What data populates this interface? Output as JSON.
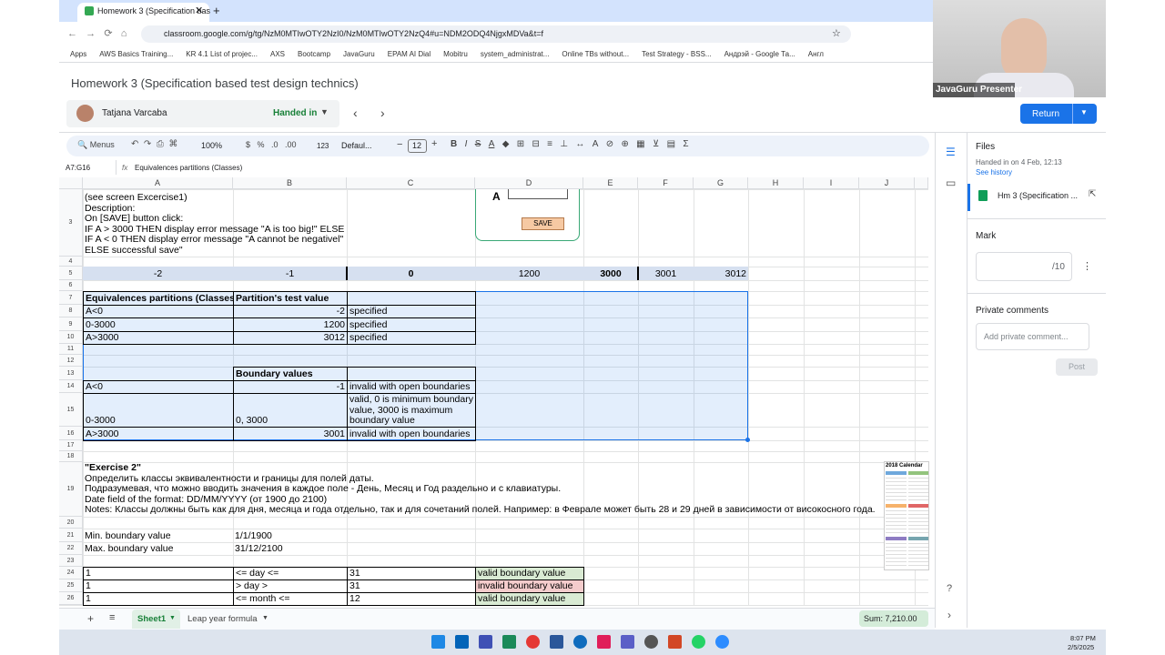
{
  "browser": {
    "tab_title": "Homework 3 (Specification bas",
    "url": "classroom.google.com/g/tg/NzM0MTIwOTY2NzI0/NzM0MTIwOTY2NzQ4#u=NDM2ODQ4NjgxMDVa&t=f",
    "bookmarks": [
      "Apps",
      "AWS Basics Training...",
      "KR 4.1 List of projec...",
      "AXS",
      "Bootcamp",
      "JavaGuru",
      "EPAM AI Dial",
      "Mobitru",
      "system_administrat...",
      "Online TBs without...",
      "Test Strategy - BSS...",
      "Андрэй - Google Та...",
      "Англ"
    ]
  },
  "header": {
    "title": "Homework 3 (Specification based test design technics)",
    "student": "Tatjana Varcaba",
    "status": "Handed in",
    "return_button": "Return"
  },
  "video": {
    "label": "JavaGuru Presenter"
  },
  "toolbar": {
    "menus": "Menus",
    "zoom": "100%",
    "number_format": "123",
    "font": "Defaul...",
    "font_size": "12"
  },
  "formula_bar": {
    "cell_ref": "A7:G16",
    "content": "Equivalences partitions (Classes)"
  },
  "sheet": {
    "columns": [
      "A",
      "B",
      "C",
      "D",
      "E",
      "F",
      "G",
      "H",
      "I",
      "J"
    ],
    "rows": [
      "3",
      "4",
      "5",
      "6",
      "7",
      "8",
      "9",
      "10",
      "11",
      "12",
      "13",
      "14",
      "15",
      "16",
      "17",
      "18",
      "19",
      "20",
      "21",
      "22",
      "23",
      "24",
      "25",
      "26"
    ],
    "embedded_form": {
      "label": "A",
      "button": "SAVE"
    },
    "embedded_calendar": {
      "title": "2018 Calendar"
    },
    "cells": [
      {
        "row": "3",
        "col": "A",
        "text": "(see screen Excercise1)\nDescription:\nOn [SAVE] button click:\nIF A > 3000 THEN display error message \"A is too big!\" ELSE\nIF A < 0 THEN display error message \"A cannot be negativel\"\nELSE successful save\""
      },
      {
        "row": "5",
        "col": "A",
        "text": "-2",
        "align": "center",
        "fill": "#d6e0f0"
      },
      {
        "row": "5",
        "col": "B",
        "text": "-1",
        "align": "center",
        "fill": "#d6e0f0"
      },
      {
        "row": "5",
        "col": "C",
        "text": "0",
        "align": "center",
        "bold": true,
        "fill": "#d6e0f0"
      },
      {
        "row": "5",
        "col": "D",
        "text": "1200",
        "align": "center",
        "fill": "#d6e0f0"
      },
      {
        "row": "5",
        "col": "E",
        "text": "3000",
        "align": "center",
        "bold": true,
        "fill": "#d6e0f0"
      },
      {
        "row": "5",
        "col": "F",
        "text": "3001",
        "align": "center",
        "fill": "#d6e0f0"
      },
      {
        "row": "5",
        "col": "G",
        "text": "3012",
        "align": "right",
        "fill": "#d6e0f0"
      },
      {
        "row": "7",
        "col": "A",
        "text": "Equivalences partitions (Classes)",
        "bold": true,
        "border": true
      },
      {
        "row": "7",
        "col": "B",
        "text": "Partition's test value",
        "bold": true,
        "border": true
      },
      {
        "row": "7",
        "col": "C",
        "text": "",
        "border": true
      },
      {
        "row": "8",
        "col": "A",
        "text": "A<0",
        "border": true
      },
      {
        "row": "8",
        "col": "B",
        "text": "-2",
        "align": "right",
        "border": true
      },
      {
        "row": "8",
        "col": "C",
        "text": "specified",
        "border": true
      },
      {
        "row": "9",
        "col": "A",
        "text": "0-3000",
        "border": true
      },
      {
        "row": "9",
        "col": "B",
        "text": "1200",
        "align": "right",
        "border": true
      },
      {
        "row": "9",
        "col": "C",
        "text": "specified",
        "border": true
      },
      {
        "row": "10",
        "col": "A",
        "text": "A>3000",
        "border": true
      },
      {
        "row": "10",
        "col": "B",
        "text": "3012",
        "align": "right",
        "border": true
      },
      {
        "row": "10",
        "col": "C",
        "text": "specified",
        "border": true
      },
      {
        "row": "13",
        "col": "B",
        "text": "Boundary values",
        "bold": true,
        "border": true
      },
      {
        "row": "13",
        "col": "C",
        "text": "",
        "border": true
      },
      {
        "row": "14",
        "col": "A",
        "text": "A<0",
        "border": true
      },
      {
        "row": "14",
        "col": "B",
        "text": "-1",
        "align": "right",
        "border": true
      },
      {
        "row": "14",
        "col": "C",
        "text": "invalid with open boundaries",
        "border": true
      },
      {
        "row": "15",
        "col": "A",
        "text": "0-3000",
        "border": true
      },
      {
        "row": "15",
        "col": "B",
        "text": "0, 3000",
        "border": true
      },
      {
        "row": "15",
        "col": "C",
        "text": "valid, 0 is minimum boundary value, 3000 is maximum boundary value",
        "border": true,
        "wrap": true
      },
      {
        "row": "16",
        "col": "A",
        "text": "A>3000",
        "border": true
      },
      {
        "row": "16",
        "col": "B",
        "text": "3001",
        "align": "right",
        "border": true
      },
      {
        "row": "16",
        "col": "C",
        "text": "invalid with open boundaries",
        "border": true
      },
      {
        "row": "19",
        "col": "A",
        "heading": "\"Exercise 2\"",
        "text": "Определить классы эквивалентности и границы для полей даты.\nПодразумевая, что можно вводить значения в каждое поле - День, Месяц и Год раздельно и с клавиатуры.\nDate field of the format: DD/MM/YYYY (от 1900 до 2100)\nNotes: Классы должны быть как для дня, месяца и года отдельно, так и для сочетаний полей. Например: в Феврале может быть 28 и 29 дней в зависимости от високосного года."
      },
      {
        "row": "21",
        "col": "A",
        "text": "Min. boundary value"
      },
      {
        "row": "21",
        "col": "B",
        "text": "1/1/1900"
      },
      {
        "row": "22",
        "col": "A",
        "text": "Max. boundary value"
      },
      {
        "row": "22",
        "col": "B",
        "text": "31/12/2100"
      },
      {
        "row": "24",
        "col": "A",
        "text": "1",
        "border": true
      },
      {
        "row": "24",
        "col": "B",
        "text": "<= day <=",
        "border": true
      },
      {
        "row": "24",
        "col": "C",
        "text": "31",
        "border": true
      },
      {
        "row": "24",
        "col": "D",
        "text": "valid boundary value",
        "border": true,
        "fill": "#d9ead3"
      },
      {
        "row": "25",
        "col": "A",
        "text": "1",
        "border": true
      },
      {
        "row": "25",
        "col": "B",
        "text": "> day >",
        "border": true
      },
      {
        "row": "25",
        "col": "C",
        "text": "31",
        "border": true
      },
      {
        "row": "25",
        "col": "D",
        "text": "invalid boundary value",
        "border": true,
        "fill": "#f4cccc"
      },
      {
        "row": "26",
        "col": "A",
        "text": "1",
        "border": true
      },
      {
        "row": "26",
        "col": "B",
        "text": "<= month <=",
        "border": true
      },
      {
        "row": "26",
        "col": "C",
        "text": "12",
        "border": true
      },
      {
        "row": "26",
        "col": "D",
        "text": "valid boundary value",
        "border": true,
        "fill": "#d9ead3"
      }
    ],
    "tabs": [
      "Sheet1",
      "Leap year formula"
    ],
    "sum": "Sum: 7,210.00"
  },
  "side_panel": {
    "files_title": "Files",
    "handed_in": "Handed in on 4 Feb, 12:13",
    "see_history": "See history",
    "file_name": "Hm 3 (Specification ...",
    "mark_title": "Mark",
    "mark_max": "/10",
    "private_comments": "Private comments",
    "comment_placeholder": "Add private comment...",
    "post": "Post"
  },
  "taskbar": {
    "time": "8:07 PM",
    "date": "2/5/2025"
  }
}
